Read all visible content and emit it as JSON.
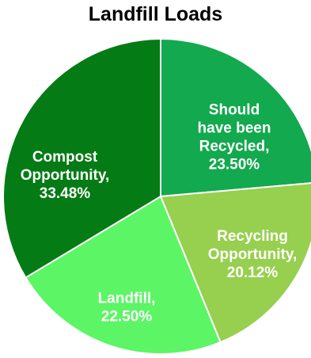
{
  "chart_data": {
    "type": "pie",
    "title": "Landfill Loads",
    "slices": [
      {
        "label": "Should have been Recycled",
        "value": 23.5,
        "value_label": "23.50%",
        "color": "#13a94e"
      },
      {
        "label": "Recycling Opportunity",
        "value": 20.12,
        "value_label": "20.12%",
        "color": "#97cf4f"
      },
      {
        "label": "Landfill",
        "value": 22.5,
        "value_label": "22.50%",
        "color": "#5cf565"
      },
      {
        "label": "Compost Opportunity",
        "value": 33.48,
        "value_label": "33.48%",
        "color": "#057b15"
      }
    ],
    "data_labels": [
      [
        "Should",
        "have been",
        "Recycled,",
        "23.50%"
      ],
      [
        "Recycling",
        "Opportunity,",
        "20.12%"
      ],
      [
        "Landfill,",
        "22.50%"
      ],
      [
        "Compost",
        "Opportunity,",
        "33.48%"
      ]
    ],
    "legend": "none"
  }
}
